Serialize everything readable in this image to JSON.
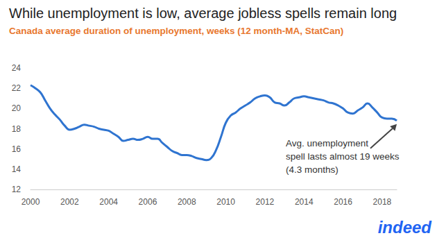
{
  "chart_data": {
    "type": "line",
    "title": "While unemployment is low, average jobless spells remain long",
    "subtitle": "Canada average duration of unemployment, weeks (12 month-MA, StatCan)",
    "annotation": "Avg. unemployment\nspell lasts almost 19 weeks\n(4.3 months)",
    "logo": "indeed",
    "x": [
      2000.0,
      2000.25,
      2000.5,
      2000.75,
      2001.0,
      2001.25,
      2001.5,
      2001.75,
      2002.0,
      2002.25,
      2002.5,
      2002.75,
      2003.0,
      2003.25,
      2003.5,
      2003.75,
      2004.0,
      2004.25,
      2004.5,
      2004.75,
      2005.0,
      2005.25,
      2005.5,
      2005.75,
      2006.0,
      2006.25,
      2006.5,
      2006.75,
      2007.0,
      2007.25,
      2007.5,
      2007.75,
      2008.0,
      2008.25,
      2008.5,
      2008.75,
      2009.0,
      2009.25,
      2009.5,
      2009.75,
      2010.0,
      2010.25,
      2010.5,
      2010.75,
      2011.0,
      2011.25,
      2011.5,
      2011.75,
      2012.0,
      2012.25,
      2012.5,
      2012.75,
      2013.0,
      2013.25,
      2013.5,
      2013.75,
      2014.0,
      2014.25,
      2014.5,
      2014.75,
      2015.0,
      2015.25,
      2015.5,
      2015.75,
      2016.0,
      2016.25,
      2016.5,
      2016.75,
      2017.0,
      2017.25,
      2017.5,
      2017.75,
      2018.0,
      2018.25,
      2018.5,
      2018.75
    ],
    "values": [
      22.3,
      22.0,
      21.6,
      20.8,
      20.0,
      19.4,
      18.9,
      18.3,
      17.9,
      18.0,
      18.2,
      18.4,
      18.3,
      18.2,
      18.0,
      17.9,
      17.8,
      17.5,
      17.2,
      16.8,
      16.9,
      17.0,
      16.9,
      17.0,
      17.2,
      17.0,
      17.0,
      16.6,
      16.2,
      15.8,
      15.6,
      15.4,
      15.4,
      15.3,
      15.1,
      15.0,
      14.9,
      15.1,
      15.9,
      17.2,
      18.6,
      19.3,
      19.6,
      20.0,
      20.3,
      20.6,
      21.0,
      21.2,
      21.3,
      21.1,
      20.6,
      20.5,
      20.3,
      20.6,
      21.0,
      21.1,
      21.2,
      21.1,
      21.0,
      20.9,
      20.8,
      20.6,
      20.5,
      20.3,
      20.0,
      19.6,
      19.5,
      19.8,
      20.1,
      20.5,
      20.1,
      19.6,
      19.1,
      19.0,
      19.0,
      18.8
    ],
    "color": "#2f74d0",
    "xlim": [
      2000,
      2018.75
    ],
    "xticks": [
      2000,
      2002,
      2004,
      2006,
      2008,
      2010,
      2012,
      2014,
      2016,
      2018
    ],
    "ylim": [
      12,
      24
    ],
    "yticks": [
      12,
      14,
      16,
      18,
      20,
      22,
      24
    ],
    "grid": false
  }
}
